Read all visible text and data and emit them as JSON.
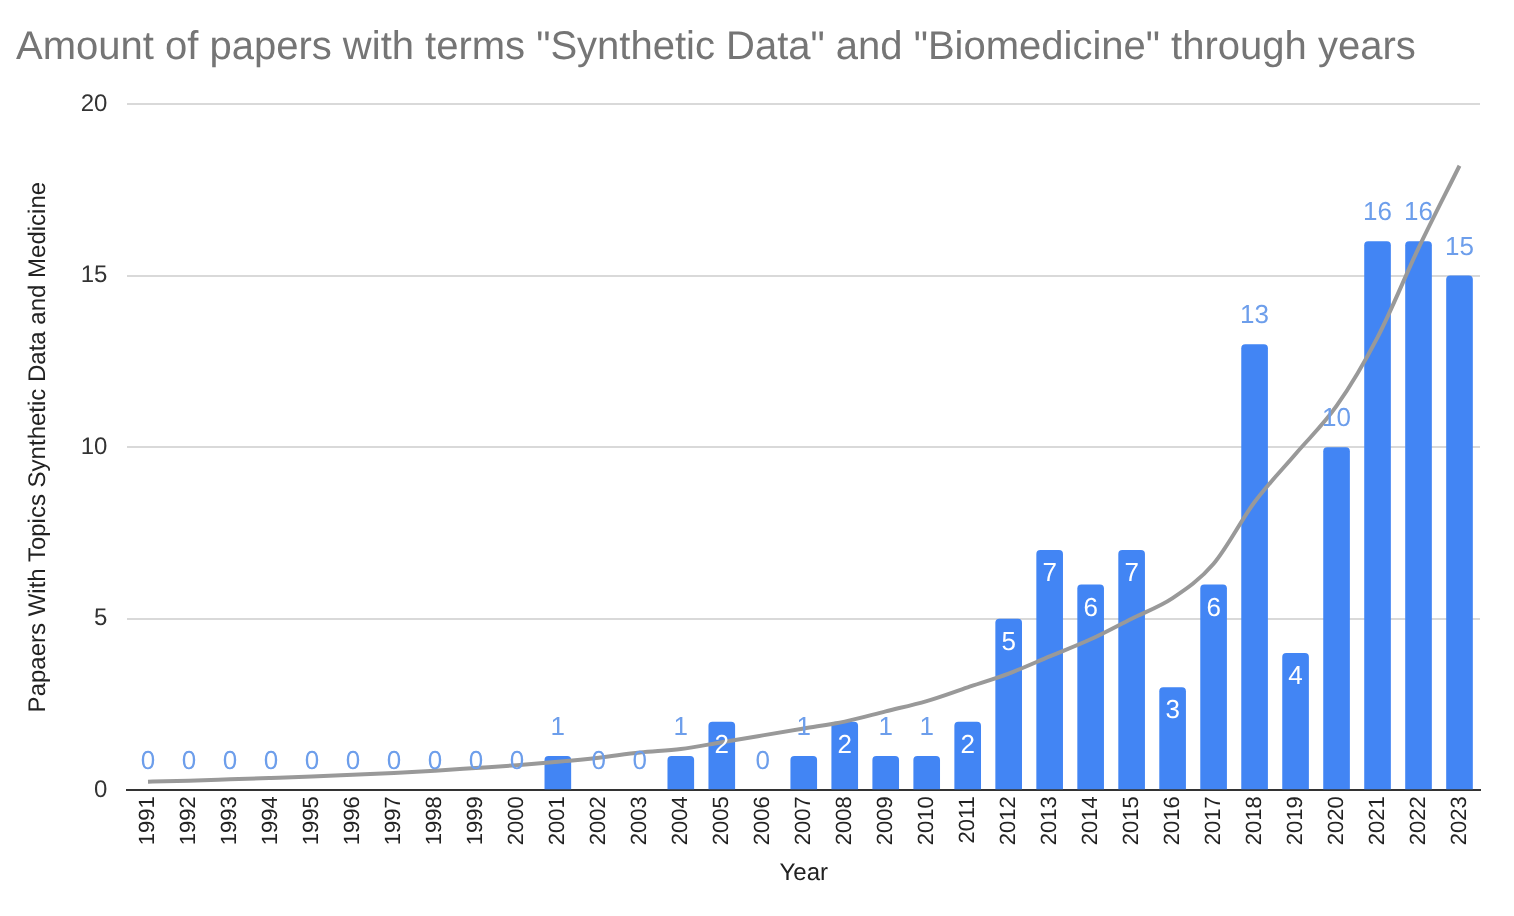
{
  "chart_data": {
    "type": "bar",
    "title": "Amount of papers with terms \"Synthetic Data\" and \"Biomedicine\" through years",
    "xlabel": "Year",
    "ylabel": "Papaers With Topics Synthetic Data and Medicine",
    "categories": [
      "1991",
      "1992",
      "1993",
      "1994",
      "1995",
      "1996",
      "1997",
      "1998",
      "1999",
      "2000",
      "2001",
      "2002",
      "2003",
      "2004",
      "2005",
      "2006",
      "2007",
      "2008",
      "2009",
      "2010",
      "2011",
      "2012",
      "2013",
      "2014",
      "2015",
      "2016",
      "2017",
      "2018",
      "2019",
      "2020",
      "2021",
      "2022",
      "2023"
    ],
    "series": [
      {
        "color": "#4285f4",
        "values": [
          0,
          0,
          0,
          0,
          0,
          0,
          0,
          0,
          0,
          0,
          1,
          0,
          0,
          1,
          2,
          0,
          1,
          2,
          1,
          1,
          2,
          5,
          7,
          6,
          7,
          3,
          6,
          13,
          4,
          10,
          16,
          16,
          15
        ],
        "value_labels": [
          "0",
          "0",
          "0",
          "0",
          "0",
          "0",
          "0",
          "0",
          "0",
          "0",
          "1",
          "0",
          "0",
          "1",
          "2",
          "0",
          "1",
          "2",
          "1",
          "1",
          "2",
          "5",
          "7",
          "6",
          "7",
          "3",
          "6",
          "13",
          "4",
          "10",
          "16",
          "16",
          "15"
        ]
      },
      {
        "type": "line",
        "color": "#999999",
        "values": [
          0.25,
          0.28,
          0.32,
          0.36,
          0.4,
          0.45,
          0.5,
          0.57,
          0.65,
          0.73,
          0.83,
          0.95,
          1.1,
          1.2,
          1.4,
          1.6,
          1.8,
          2.0,
          2.3,
          2.6,
          3.0,
          3.4,
          3.9,
          4.4,
          5.0,
          5.6,
          6.6,
          8.4,
          9.8,
          11.2,
          13.2,
          15.8,
          18.2
        ]
      }
    ],
    "ylim": [
      0,
      20
    ],
    "yticks": [
      0,
      5,
      10,
      15,
      20
    ],
    "grid": "y",
    "legend": false
  }
}
